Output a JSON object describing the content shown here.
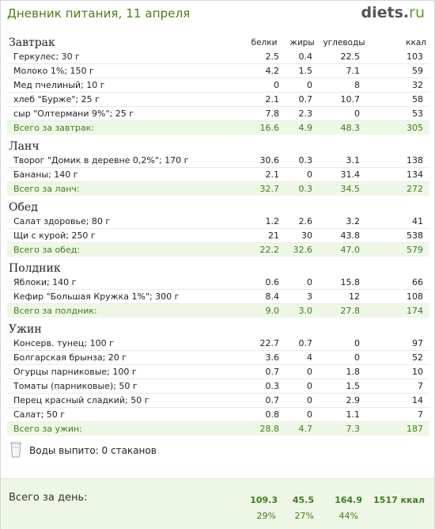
{
  "header": {
    "title": "Дневник питания, 11 апреля",
    "logo_main": "diets",
    "logo_dot": ".",
    "logo_tld": "ru"
  },
  "columns": {
    "protein": "белки",
    "fat": "жиры",
    "carbs": "углеводы",
    "kcal": "ккал"
  },
  "meals": [
    {
      "name": "Завтрак",
      "items": [
        {
          "name": "Геркулес; 30 г",
          "protein": "2.5",
          "fat": "0.4",
          "carbs": "22.5",
          "kcal": "103"
        },
        {
          "name": "Молоко 1%; 150 г",
          "protein": "4.2",
          "fat": "1.5",
          "carbs": "7.1",
          "kcal": "59"
        },
        {
          "name": "Мед пчелиный; 10 г",
          "protein": "0",
          "fat": "0",
          "carbs": "8",
          "kcal": "32"
        },
        {
          "name": "хлеб \"Бурже\"; 25 г",
          "protein": "2.1",
          "fat": "0.7",
          "carbs": "10.7",
          "kcal": "58"
        },
        {
          "name": "сыр \"Олтермани 9%\"; 25 г",
          "protein": "7.8",
          "fat": "2.3",
          "carbs": "0",
          "kcal": "53"
        }
      ],
      "total": {
        "label": "Всего за завтрак:",
        "protein": "16.6",
        "fat": "4.9",
        "carbs": "48.3",
        "kcal": "305"
      }
    },
    {
      "name": "Ланч",
      "items": [
        {
          "name": "Творог \"Домик в деревне 0,2%\"; 170 г",
          "protein": "30.6",
          "fat": "0.3",
          "carbs": "3.1",
          "kcal": "138"
        },
        {
          "name": "Бананы; 140 г",
          "protein": "2.1",
          "fat": "0",
          "carbs": "31.4",
          "kcal": "134"
        }
      ],
      "total": {
        "label": "Всего за ланч:",
        "protein": "32.7",
        "fat": "0.3",
        "carbs": "34.5",
        "kcal": "272"
      }
    },
    {
      "name": "Обед",
      "items": [
        {
          "name": "Салат здоровье; 80 г",
          "protein": "1.2",
          "fat": "2.6",
          "carbs": "3.2",
          "kcal": "41"
        },
        {
          "name": "Щи с курой; 250 г",
          "protein": "21",
          "fat": "30",
          "carbs": "43.8",
          "kcal": "538"
        }
      ],
      "total": {
        "label": "Всего за обед:",
        "protein": "22.2",
        "fat": "32.6",
        "carbs": "47.0",
        "kcal": "579"
      }
    },
    {
      "name": "Полдник",
      "items": [
        {
          "name": "Яблоки; 140 г",
          "protein": "0.6",
          "fat": "0",
          "carbs": "15.8",
          "kcal": "66"
        },
        {
          "name": "Кефир \"Большая Кружка 1%\"; 300 г",
          "protein": "8.4",
          "fat": "3",
          "carbs": "12",
          "kcal": "108"
        }
      ],
      "total": {
        "label": "Всего за полдник:",
        "protein": "9.0",
        "fat": "3.0",
        "carbs": "27.8",
        "kcal": "174"
      }
    },
    {
      "name": "Ужин",
      "items": [
        {
          "name": "Консерв. тунец; 100 г",
          "protein": "22.7",
          "fat": "0.7",
          "carbs": "0",
          "kcal": "97"
        },
        {
          "name": "Болгарская брынза; 20 г",
          "protein": "3.6",
          "fat": "4",
          "carbs": "0",
          "kcal": "52"
        },
        {
          "name": "Огурцы парниковые; 100 г",
          "protein": "0.7",
          "fat": "0",
          "carbs": "1.8",
          "kcal": "10"
        },
        {
          "name": "Томаты (парниковые); 50 г",
          "protein": "0.3",
          "fat": "0",
          "carbs": "1.5",
          "kcal": "7"
        },
        {
          "name": "Перец красный сладкий; 50 г",
          "protein": "0.7",
          "fat": "0",
          "carbs": "2.9",
          "kcal": "14"
        },
        {
          "name": "Салат; 50 г",
          "protein": "0.8",
          "fat": "0",
          "carbs": "1.1",
          "kcal": "7"
        }
      ],
      "total": {
        "label": "Всего за ужин:",
        "protein": "28.8",
        "fat": "4.7",
        "carbs": "7.3",
        "kcal": "187"
      }
    }
  ],
  "water": {
    "icon": "glass-icon",
    "text": "Воды выпито: 0 стаканов"
  },
  "daily": {
    "label": "Всего за день:",
    "protein": "109.3",
    "fat": "45.5",
    "carbs": "164.9",
    "kcal": "1517 ккал",
    "protein_pct": "29%",
    "fat_pct": "27%",
    "carbs_pct": "44%"
  },
  "colors": {
    "accent_green": "#4a7f16",
    "total_bg": "#eef7e6",
    "total_text": "#3f7d1c"
  }
}
